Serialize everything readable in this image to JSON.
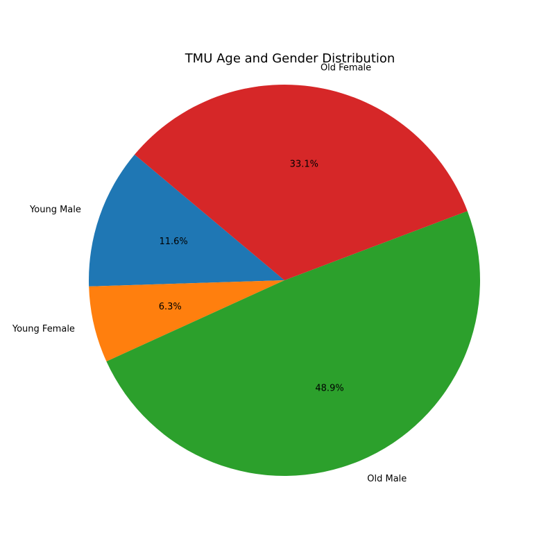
{
  "chart_data": {
    "type": "pie",
    "title": "TMU Age and Gender Distribution",
    "slices": [
      {
        "label": "Young Male",
        "value": 11.6,
        "display": "11.6%",
        "color": "#1f77b4"
      },
      {
        "label": "Young Female",
        "value": 6.3,
        "display": "6.3%",
        "color": "#ff7f0e"
      },
      {
        "label": "Old Male",
        "value": 48.9,
        "display": "48.9%",
        "color": "#2ca02c"
      },
      {
        "label": "Old Female",
        "value": 33.1,
        "display": "33.1%",
        "color": "#d62728"
      }
    ],
    "start_angle_deg": 140,
    "direction": "counterclockwise",
    "legend": "none"
  }
}
